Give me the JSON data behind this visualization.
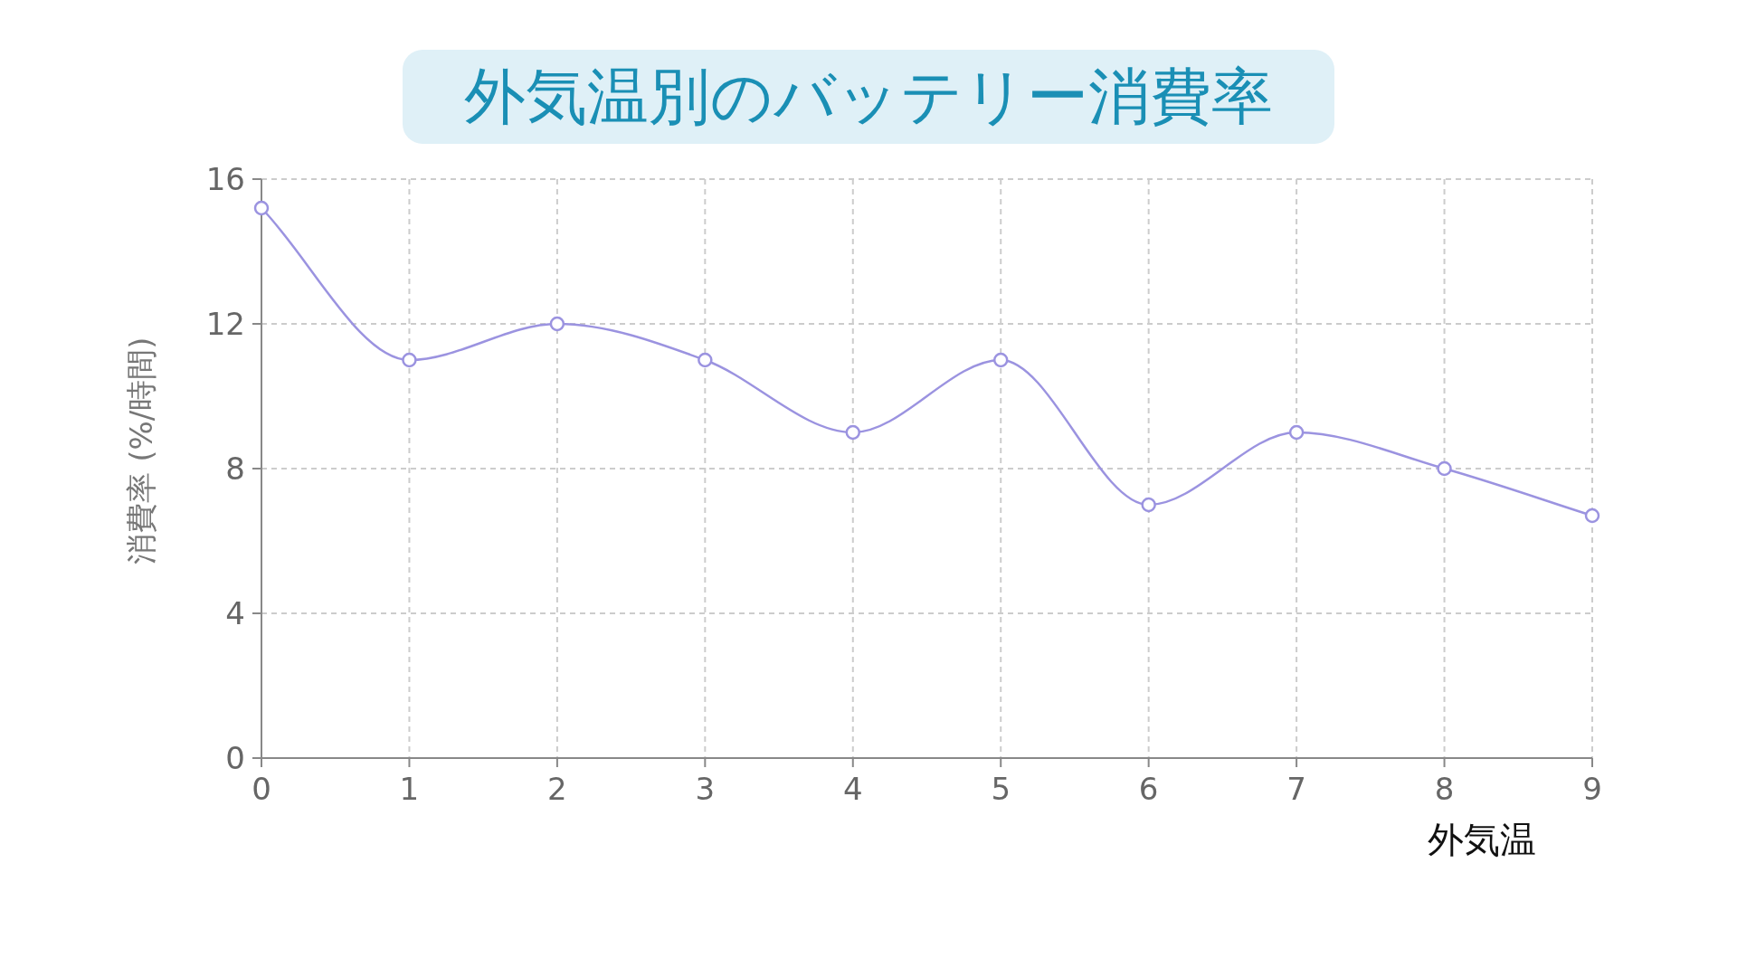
{
  "chart_data": {
    "type": "line",
    "title": "外気温別のバッテリー消費率",
    "xlabel": "外気温",
    "ylabel": "消費率 (%/時間)",
    "x": [
      0,
      1,
      2,
      3,
      4,
      5,
      6,
      7,
      8,
      9
    ],
    "series": [
      {
        "color": "#9b93e0",
        "values": [
          15.2,
          11,
          12,
          11,
          9,
          11,
          7,
          9,
          8,
          6.7
        ]
      }
    ],
    "xlim": [
      0,
      9
    ],
    "xticks": [
      0,
      1,
      2,
      3,
      4,
      5,
      6,
      7,
      8,
      9
    ],
    "ylim": [
      0,
      16
    ],
    "yticks": [
      0,
      4,
      8,
      12,
      16
    ],
    "grid": true,
    "marker": "circle",
    "line_style": "solid"
  }
}
